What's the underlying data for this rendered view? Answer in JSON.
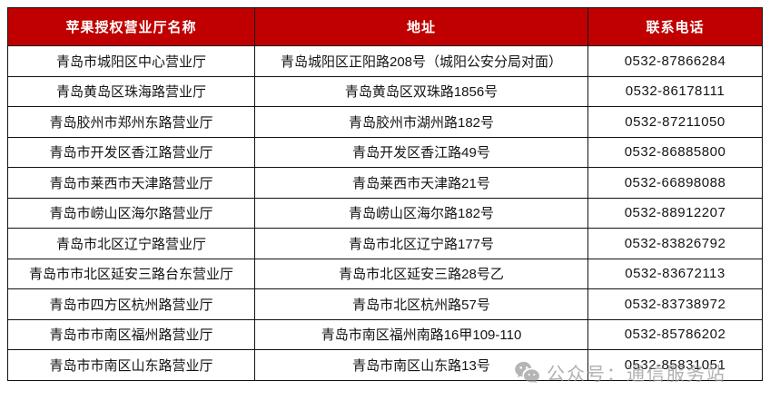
{
  "colors": {
    "header_bg": "#c00000",
    "header_text": "#ffffff",
    "border": "#111111",
    "watermark": "#969696"
  },
  "table": {
    "columns": [
      "苹果授权营业厅名称",
      "地址",
      "联系电话"
    ],
    "rows": [
      {
        "name": "青岛市城阳区中心营业厅",
        "address": "青岛城阳区正阳路208号（城阳公安分局对面）",
        "phone": "0532-87866284"
      },
      {
        "name": "青岛黄岛区珠海路营业厅",
        "address": "青岛黄岛区双珠路1856号",
        "phone": "0532-86178111"
      },
      {
        "name": "青岛胶州市郑州东路营业厅",
        "address": "青岛胶州市湖州路182号",
        "phone": "0532-87211050"
      },
      {
        "name": "青岛市开发区香江路营业厅",
        "address": "青岛开发区香江路49号",
        "phone": "0532-86885800"
      },
      {
        "name": "青岛市莱西市天津路营业厅",
        "address": "青岛莱西市天津路21号",
        "phone": "0532-66898088"
      },
      {
        "name": "青岛市崂山区海尔路营业厅",
        "address": "青岛崂山区海尔路182号",
        "phone": "0532-88912207"
      },
      {
        "name": "青岛市北区辽宁路营业厅",
        "address": "青岛市北区辽宁路177号",
        "phone": "0532-83826792"
      },
      {
        "name": "青岛市市北区延安三路台东营业厅",
        "address": "青岛市北区延安三路28号乙",
        "phone": "0532-83672113"
      },
      {
        "name": "青岛市四方区杭州路营业厅",
        "address": "青岛市北区杭州路57号",
        "phone": "0532-83738972"
      },
      {
        "name": "青岛市市南区福州路营业厅",
        "address": "青岛市南区福州南路16甲109-110",
        "phone": "0532-85786202"
      },
      {
        "name": "青岛市市南区山东路营业厅",
        "address": "青岛市南区山东路13号",
        "phone": "0532-85831051"
      }
    ]
  },
  "watermark": {
    "icon": "wechat-icon",
    "text": "公众号：通信服务站"
  }
}
